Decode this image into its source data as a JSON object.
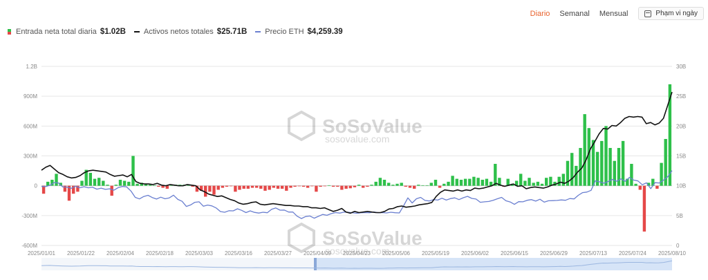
{
  "tabs": [
    {
      "label": "Diario",
      "active": true
    },
    {
      "label": "Semanal",
      "active": false
    },
    {
      "label": "Mensual",
      "active": false
    }
  ],
  "date_range_label": "Phạm vi ngày",
  "legend": [
    {
      "label": "Entrada neta total diaria",
      "value": "$1.02B"
    },
    {
      "label": "Activos netos totales",
      "value": "$25.71B",
      "color": "#111111"
    },
    {
      "label": "Precio ETH",
      "value": "$4,259.39",
      "color": "#6a7fd0"
    }
  ],
  "watermark": {
    "brand": "SoSoValue",
    "url": "sosovalue.com"
  },
  "colors": {
    "inflow": "#2ec04a",
    "outflow": "#e54848",
    "assets": "#111111",
    "price": "#6a7fd0",
    "grid": "#e6e6e6",
    "navigator": "#d6e4f7"
  },
  "chart_data": {
    "type": "bar",
    "x_ticks": [
      "2025/01/01",
      "2025/01/22",
      "2025/02/04",
      "2025/02/18",
      "2025/03/03",
      "2025/03/16",
      "2025/03/27",
      "2025/04/09",
      "2025/04/23",
      "2025/05/06",
      "2025/05/19",
      "2025/06/02",
      "2025/06/15",
      "2025/06/29",
      "2025/07/13",
      "2025/07/24",
      "2025/08/10"
    ],
    "y_left_ticks": [
      "1.2B",
      "900M",
      "600M",
      "300M",
      "0",
      "-300M",
      "-600M"
    ],
    "y_left_range": [
      -600,
      1200
    ],
    "y_right_ticks": [
      "30B",
      "25B",
      "20B",
      "15B",
      "10B",
      "5B",
      "0"
    ],
    "y_right_range": [
      0,
      30
    ],
    "series": [
      {
        "name": "Entrada neta total diaria",
        "unit": "M USD",
        "type": "bar",
        "values": [
          -80,
          40,
          60,
          120,
          30,
          -60,
          -150,
          -80,
          -60,
          50,
          160,
          130,
          70,
          80,
          50,
          10,
          -100,
          10,
          60,
          50,
          40,
          300,
          20,
          30,
          15,
          10,
          5,
          -10,
          -20,
          -30,
          5,
          10,
          10,
          10,
          10,
          -10,
          -60,
          -50,
          -110,
          -60,
          -90,
          -40,
          -20,
          -10,
          -5,
          -60,
          -40,
          -30,
          -30,
          -20,
          -20,
          -30,
          -50,
          -40,
          -20,
          -30,
          -30,
          -50,
          -20,
          -10,
          -5,
          -10,
          -20,
          -5,
          -60,
          -10,
          -5,
          5,
          -10,
          -10,
          -40,
          -30,
          -25,
          -15,
          10,
          -20,
          -10,
          10,
          40,
          80,
          60,
          30,
          10,
          20,
          30,
          -10,
          -20,
          -30,
          10,
          5,
          5,
          30,
          60,
          -20,
          20,
          40,
          100,
          70,
          60,
          70,
          70,
          90,
          80,
          60,
          70,
          40,
          220,
          80,
          -10,
          70,
          20,
          50,
          120,
          50,
          80,
          30,
          40,
          20,
          80,
          90,
          40,
          90,
          120,
          250,
          330,
          200,
          380,
          720,
          580,
          460,
          340,
          450,
          600,
          380,
          250,
          380,
          450,
          70,
          220,
          20,
          -40,
          -460,
          30,
          70,
          -30,
          230,
          470,
          1020
        ]
      },
      {
        "name": "Activos netos totales",
        "unit": "B USD",
        "type": "line",
        "values": [
          12.6,
          13.1,
          13.4,
          12.8,
          12.2,
          11.9,
          11.5,
          11.3,
          11.4,
          11.7,
          12.2,
          12.5,
          12.6,
          12.5,
          12.4,
          12.3,
          11.9,
          11.6,
          11.7,
          11.8,
          11.5,
          11.9,
          10.7,
          10.4,
          10.3,
          10.3,
          10.2,
          10.4,
          10.1,
          10.0,
          10.2,
          10.1,
          10.0,
          10.0,
          10.2,
          10.1,
          10.0,
          9.3,
          9.0,
          8.6,
          8.4,
          8.2,
          8.3,
          8.0,
          7.7,
          7.5,
          7.1,
          6.9,
          7.0,
          7.2,
          7.3,
          6.9,
          6.8,
          6.9,
          7.0,
          6.9,
          6.8,
          6.7,
          6.7,
          6.6,
          6.6,
          6.5,
          6.5,
          6.3,
          6.3,
          6.2,
          6.3,
          6.0,
          5.7,
          5.9,
          6.2,
          5.6,
          5.4,
          5.7,
          5.5,
          5.6,
          5.7,
          5.6,
          5.5,
          5.5,
          5.7,
          6.1,
          6.2,
          6.5,
          6.6,
          6.4,
          6.5,
          6.6,
          6.8,
          6.9,
          7.0,
          7.2,
          8.2,
          8.9,
          9.3,
          9.2,
          9.1,
          9.3,
          9.1,
          9.3,
          9.2,
          9.6,
          9.5,
          9.6,
          9.8,
          10.0,
          10.4,
          10.1,
          9.9,
          10.1,
          10.3,
          9.9,
          10.0,
          9.5,
          9.7,
          9.8,
          9.7,
          9.6,
          9.8,
          10.1,
          10.3,
          10.6,
          10.4,
          10.8,
          11.4,
          12.3,
          13.0,
          14.4,
          16.2,
          17.4,
          18.7,
          19.6,
          19.5,
          20.1,
          20.0,
          20.6,
          21.3,
          21.6,
          21.5,
          21.6,
          21.5,
          20.4,
          20.6,
          20.2,
          20.5,
          21.3,
          23.5,
          25.7
        ]
      },
      {
        "name": "Precio ETH",
        "unit": "USD",
        "type": "line",
        "values": [
          3330,
          3320,
          3400,
          3560,
          3530,
          3300,
          3290,
          3220,
          3340,
          3250,
          3310,
          3250,
          3280,
          3170,
          3230,
          3160,
          3190,
          3110,
          3260,
          3330,
          3300,
          3060,
          2690,
          2600,
          2740,
          2810,
          2680,
          2590,
          2700,
          2610,
          2660,
          2820,
          2570,
          2460,
          2160,
          2250,
          2400,
          2430,
          2170,
          2240,
          2190,
          2070,
          1860,
          1820,
          1910,
          1900,
          2020,
          1930,
          1800,
          1900,
          1810,
          1770,
          1820,
          1790,
          1990,
          2070,
          1940,
          1950,
          1830,
          1830,
          1590,
          1450,
          1570,
          1600,
          1470,
          1580,
          1690,
          1640,
          1740,
          1800,
          1770,
          1830,
          1820,
          1790,
          1760,
          1790,
          1800,
          1790,
          1840,
          1790,
          1800,
          1780,
          1820,
          1790,
          1780,
          2200,
          2660,
          2360,
          2610,
          2690,
          2510,
          2480,
          2560,
          2530,
          2640,
          2530,
          2620,
          2660,
          2560,
          2670,
          2750,
          2630,
          2590,
          2400,
          2430,
          2450,
          2520,
          2610,
          2690,
          2490,
          2420,
          2280,
          2440,
          2430,
          2520,
          2560,
          2470,
          2580,
          2410,
          2490,
          2500,
          2510,
          2540,
          2520,
          2620,
          2600,
          2810,
          2970,
          3000,
          3100,
          3660,
          3600,
          3520,
          3620,
          3740,
          3630,
          3770,
          3630,
          3860,
          3700,
          3650,
          3430,
          3540,
          3200,
          3550,
          3530,
          3700,
          3900,
          4259
        ]
      }
    ]
  }
}
